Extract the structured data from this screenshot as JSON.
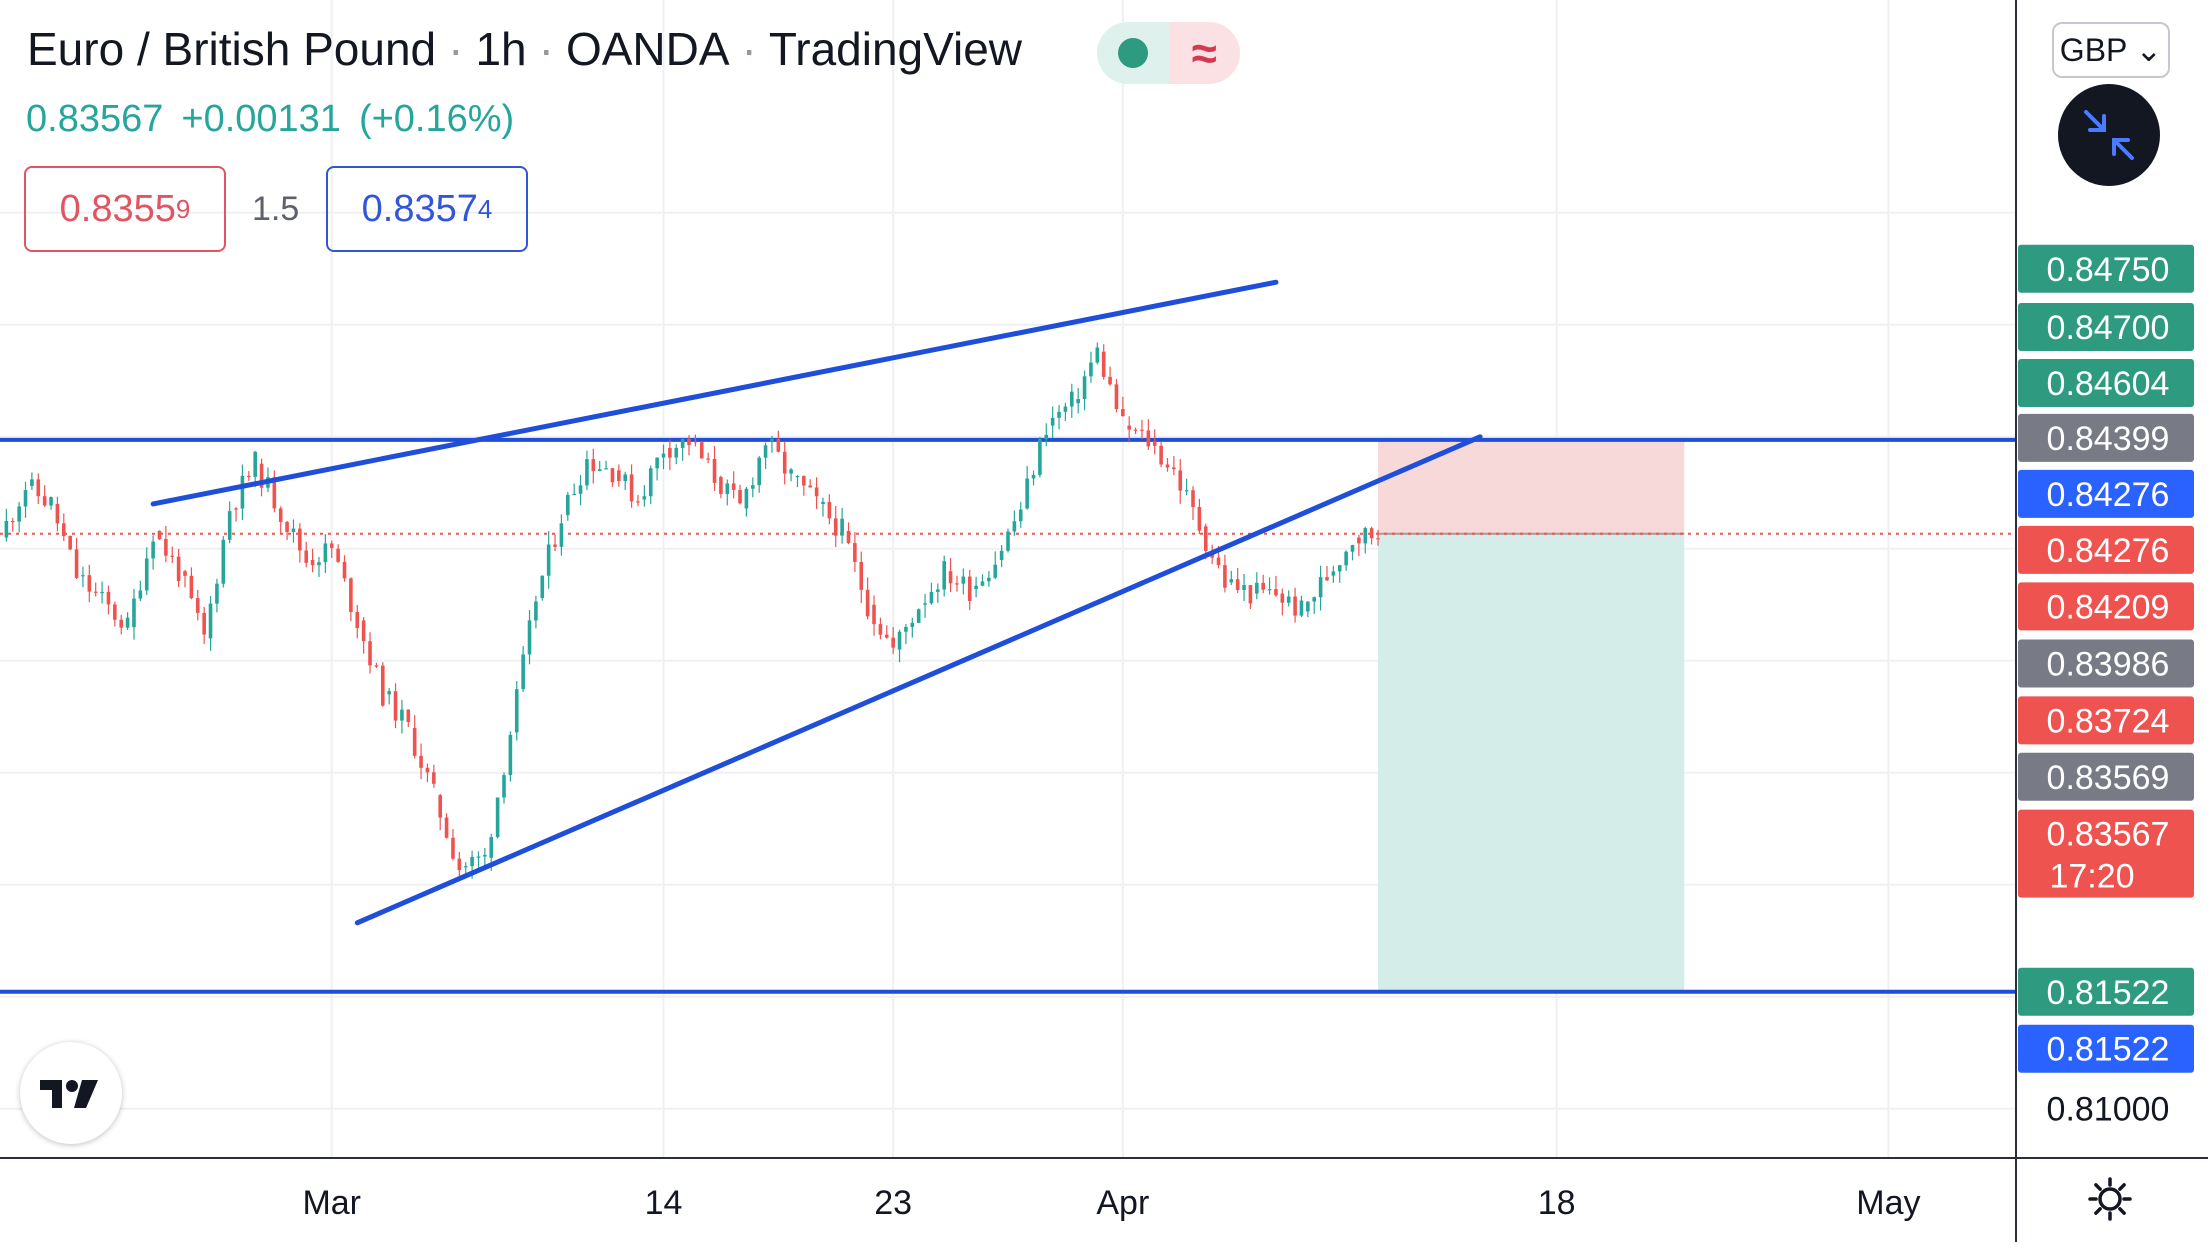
{
  "header": {
    "title": "Euro / British Pound",
    "interval": "1h",
    "exchange": "OANDA",
    "source": "TradingView",
    "last_price": "0.83567",
    "change": "+0.00131",
    "change_pct": "(+0.16%)"
  },
  "trade_panel": {
    "sell_main": "0.8355",
    "sell_pip": "9",
    "spread": "1.5",
    "buy_main": "0.8357",
    "buy_pip": "4"
  },
  "controls": {
    "currency": "GBP",
    "currency_caret": "⌄"
  },
  "icons": {
    "collapse": "collapse-arrows-icon",
    "logo": "tradingview-logo-icon",
    "settings": "gear-icon"
  },
  "colors": {
    "up": "#26a69a",
    "down": "#ef5350",
    "trendline": "#1f4ed8",
    "stop_zone": "#f7d9d9",
    "target_zone": "#d4ede9",
    "grid": "#eef0f3"
  },
  "chart_data": {
    "type": "candlestick",
    "symbol": "EURGBP",
    "timeframe": "1h",
    "ylim": [
      0.8078,
      0.8595
    ],
    "xlim": [
      "2022-02-16",
      "2022-05-06"
    ],
    "x_ticks": [
      {
        "date": "2022-03-01",
        "label": "Mar"
      },
      {
        "date": "2022-03-14",
        "label": "14"
      },
      {
        "date": "2022-03-23",
        "label": "23"
      },
      {
        "date": "2022-04-01",
        "label": "Apr"
      },
      {
        "date": "2022-04-18",
        "label": "18"
      },
      {
        "date": "2022-05-01",
        "label": "May"
      }
    ],
    "y_ticks": [
      0.83,
      0.825,
      0.82,
      0.81
    ],
    "price_path": [
      [
        "2022-02-16",
        0.8355
      ],
      [
        "2022-02-17",
        0.8378
      ],
      [
        "2022-02-18",
        0.837
      ],
      [
        "2022-02-19",
        0.8338
      ],
      [
        "2022-02-21",
        0.8315
      ],
      [
        "2022-02-22",
        0.8358
      ],
      [
        "2022-02-23",
        0.834
      ],
      [
        "2022-02-24",
        0.831
      ],
      [
        "2022-02-25",
        0.8368
      ],
      [
        "2022-02-26",
        0.8388
      ],
      [
        "2022-02-28",
        0.8345
      ],
      [
        "2022-03-01",
        0.835
      ],
      [
        "2022-03-02",
        0.8318
      ],
      [
        "2022-03-03",
        0.8285
      ],
      [
        "2022-03-04",
        0.827
      ],
      [
        "2022-03-05",
        0.824
      ],
      [
        "2022-03-06",
        0.8208
      ],
      [
        "2022-03-07",
        0.8212
      ],
      [
        "2022-03-08",
        0.8268
      ],
      [
        "2022-03-09",
        0.8328
      ],
      [
        "2022-03-10",
        0.8365
      ],
      [
        "2022-03-11",
        0.839
      ],
      [
        "2022-03-12",
        0.8385
      ],
      [
        "2022-03-13",
        0.8372
      ],
      [
        "2022-03-14",
        0.8395
      ],
      [
        "2022-03-15",
        0.8398
      ],
      [
        "2022-03-16",
        0.8382
      ],
      [
        "2022-03-17",
        0.8368
      ],
      [
        "2022-03-18",
        0.8398
      ],
      [
        "2022-03-19",
        0.8382
      ],
      [
        "2022-03-20",
        0.837
      ],
      [
        "2022-03-21",
        0.8358
      ],
      [
        "2022-03-22",
        0.8325
      ],
      [
        "2022-03-23",
        0.8305
      ],
      [
        "2022-03-24",
        0.8325
      ],
      [
        "2022-03-25",
        0.834
      ],
      [
        "2022-03-26",
        0.8332
      ],
      [
        "2022-03-27",
        0.8345
      ],
      [
        "2022-03-28",
        0.8368
      ],
      [
        "2022-03-29",
        0.8405
      ],
      [
        "2022-03-30",
        0.8415
      ],
      [
        "2022-03-31",
        0.8438
      ],
      [
        "2022-04-01",
        0.8405
      ],
      [
        "2022-04-02",
        0.8398
      ],
      [
        "2022-04-03",
        0.8385
      ],
      [
        "2022-04-04",
        0.836
      ],
      [
        "2022-04-05",
        0.8335
      ],
      [
        "2022-04-06",
        0.833
      ],
      [
        "2022-04-07",
        0.833
      ],
      [
        "2022-04-08",
        0.8322
      ],
      [
        "2022-04-09",
        0.8338
      ],
      [
        "2022-04-10",
        0.8355
      ],
      [
        "2022-04-11",
        0.8357
      ]
    ],
    "horizontal_lines": [
      {
        "price": 0.83986,
        "color": "#1f4ed8"
      },
      {
        "price": 0.81522,
        "color": "#1f4ed8"
      },
      {
        "price": 0.83567,
        "color": "#ef5350",
        "style": "dotted"
      }
    ],
    "trend_lines": [
      {
        "from": [
          "2022-02-22",
          0.837
        ],
        "to": [
          "2022-04-07",
          0.8469
        ]
      },
      {
        "from": [
          "2022-03-02",
          0.8183
        ],
        "to": [
          "2022-04-15",
          0.84
        ]
      }
    ],
    "position": {
      "kind": "short",
      "start": "2022-04-11",
      "end": "2022-04-23",
      "entry": 0.83567,
      "stop": 0.83986,
      "target": 0.81522
    },
    "price_labels": [
      {
        "text": "0.84750",
        "price": 0.8475,
        "bg": "#2e9a80"
      },
      {
        "text": "0.84700",
        "price": 0.8449,
        "bg": "#2e9a80"
      },
      {
        "text": "0.84604",
        "price": 0.8424,
        "bg": "#2e9a80"
      },
      {
        "text": "0.84399",
        "price": 0.83995,
        "bg": "#787b86"
      },
      {
        "text": "0.84276",
        "price": 0.83745,
        "bg": "#2962ff"
      },
      {
        "text": "0.84276",
        "price": 0.83495,
        "bg": "#ef5350"
      },
      {
        "text": "0.84209",
        "price": 0.83243,
        "bg": "#ef5350"
      },
      {
        "text": "0.83986",
        "price": 0.82988,
        "bg": "#787b86"
      },
      {
        "text": "0.83724",
        "price": 0.82734,
        "bg": "#ef5350"
      },
      {
        "text": "0.83569",
        "price": 0.82482,
        "bg": "#787b86"
      },
      {
        "text": "0.83567",
        "price": 0.82228,
        "bg": "#ef5350",
        "sub": "17:20"
      },
      {
        "text": "0.81522",
        "price": 0.81522,
        "bg": "#2e9a80"
      },
      {
        "text": "0.81522",
        "price": 0.81268,
        "bg": "#2962ff"
      }
    ],
    "grid": true,
    "legend": "none"
  }
}
